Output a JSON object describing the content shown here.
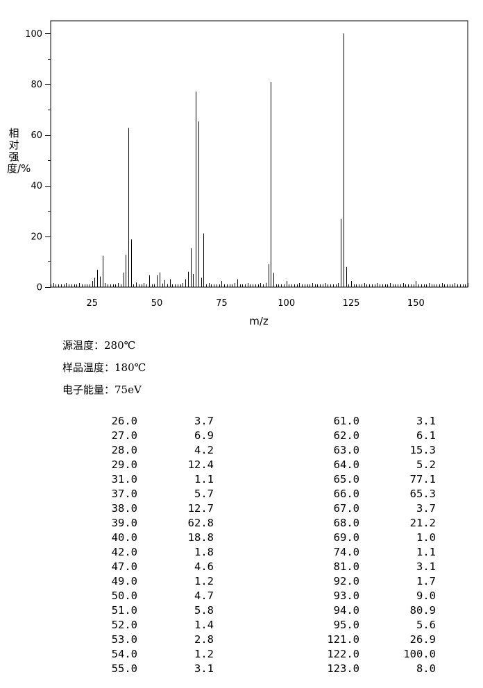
{
  "chart_data": {
    "type": "bar",
    "xlabel": "m/z",
    "ylabel": "相对强度/%",
    "xlim": [
      9,
      170
    ],
    "ylim": [
      0,
      105
    ],
    "xticks": [
      25,
      50,
      75,
      100,
      125,
      150
    ],
    "yticks": [
      0,
      20,
      40,
      60,
      80,
      100
    ],
    "grid": false,
    "peaks": [
      {
        "mz": 26.0,
        "intensity": 3.7
      },
      {
        "mz": 27.0,
        "intensity": 6.9
      },
      {
        "mz": 28.0,
        "intensity": 4.2
      },
      {
        "mz": 29.0,
        "intensity": 12.4
      },
      {
        "mz": 31.0,
        "intensity": 1.1
      },
      {
        "mz": 37.0,
        "intensity": 5.7
      },
      {
        "mz": 38.0,
        "intensity": 12.7
      },
      {
        "mz": 39.0,
        "intensity": 62.8
      },
      {
        "mz": 40.0,
        "intensity": 18.8
      },
      {
        "mz": 42.0,
        "intensity": 1.8
      },
      {
        "mz": 47.0,
        "intensity": 4.6
      },
      {
        "mz": 49.0,
        "intensity": 1.2
      },
      {
        "mz": 50.0,
        "intensity": 4.7
      },
      {
        "mz": 51.0,
        "intensity": 5.8
      },
      {
        "mz": 52.0,
        "intensity": 1.4
      },
      {
        "mz": 53.0,
        "intensity": 2.8
      },
      {
        "mz": 54.0,
        "intensity": 1.2
      },
      {
        "mz": 55.0,
        "intensity": 3.1
      },
      {
        "mz": 61.0,
        "intensity": 3.1
      },
      {
        "mz": 62.0,
        "intensity": 6.1
      },
      {
        "mz": 63.0,
        "intensity": 15.3
      },
      {
        "mz": 64.0,
        "intensity": 5.2
      },
      {
        "mz": 65.0,
        "intensity": 77.1
      },
      {
        "mz": 66.0,
        "intensity": 65.3
      },
      {
        "mz": 67.0,
        "intensity": 3.7
      },
      {
        "mz": 68.0,
        "intensity": 21.2
      },
      {
        "mz": 69.0,
        "intensity": 1.0
      },
      {
        "mz": 74.0,
        "intensity": 1.1
      },
      {
        "mz": 81.0,
        "intensity": 3.1
      },
      {
        "mz": 92.0,
        "intensity": 1.7
      },
      {
        "mz": 93.0,
        "intensity": 9.0
      },
      {
        "mz": 94.0,
        "intensity": 80.9
      },
      {
        "mz": 95.0,
        "intensity": 5.6
      },
      {
        "mz": 121.0,
        "intensity": 26.9
      },
      {
        "mz": 122.0,
        "intensity": 100.0
      },
      {
        "mz": 123.0,
        "intensity": 8.0
      }
    ]
  },
  "conditions": [
    {
      "label": "源温度：",
      "value": "280℃"
    },
    {
      "label": "样品温度：",
      "value": "180℃"
    },
    {
      "label": "电子能量：",
      "value": "75eV"
    }
  ],
  "peak_table": [
    [
      "26.0",
      "3.7",
      "61.0",
      "3.1"
    ],
    [
      "27.0",
      "6.9",
      "62.0",
      "6.1"
    ],
    [
      "28.0",
      "4.2",
      "63.0",
      "15.3"
    ],
    [
      "29.0",
      "12.4",
      "64.0",
      "5.2"
    ],
    [
      "31.0",
      "1.1",
      "65.0",
      "77.1"
    ],
    [
      "37.0",
      "5.7",
      "66.0",
      "65.3"
    ],
    [
      "38.0",
      "12.7",
      "67.0",
      "3.7"
    ],
    [
      "39.0",
      "62.8",
      "68.0",
      "21.2"
    ],
    [
      "40.0",
      "18.8",
      "69.0",
      "1.0"
    ],
    [
      "42.0",
      "1.8",
      "74.0",
      "1.1"
    ],
    [
      "47.0",
      "4.6",
      "81.0",
      "3.1"
    ],
    [
      "49.0",
      "1.2",
      "92.0",
      "1.7"
    ],
    [
      "50.0",
      "4.7",
      "93.0",
      "9.0"
    ],
    [
      "51.0",
      "5.8",
      "94.0",
      "80.9"
    ],
    [
      "52.0",
      "1.4",
      "95.0",
      "5.6"
    ],
    [
      "53.0",
      "2.8",
      "121.0",
      "26.9"
    ],
    [
      "54.0",
      "1.2",
      "122.0",
      "100.0"
    ],
    [
      "55.0",
      "3.1",
      "123.0",
      "8.0"
    ]
  ]
}
